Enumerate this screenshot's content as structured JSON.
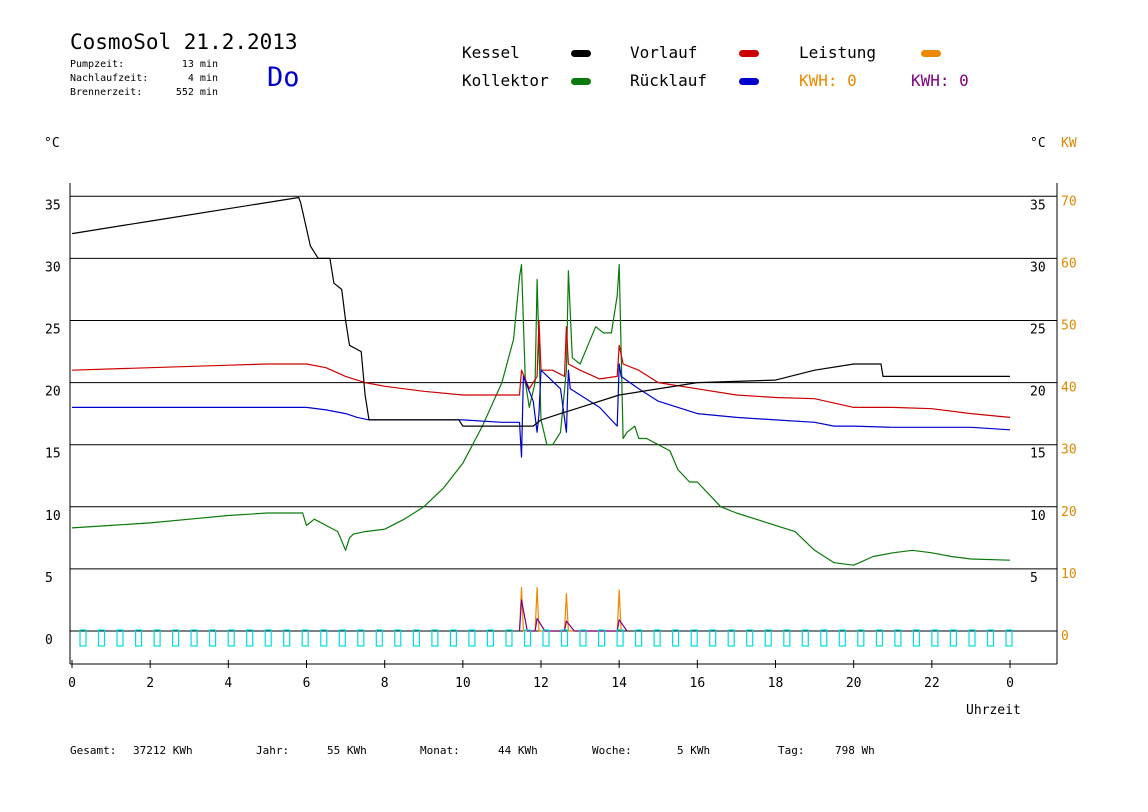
{
  "header": {
    "title": "CosmoSol 21.2.2013",
    "day": "Do",
    "stats": [
      {
        "label": "Pumpzeit:",
        "value": "13 min"
      },
      {
        "label": "Nachlaufzeit:",
        "value": "4 min"
      },
      {
        "label": "Brennerzeit:",
        "value": "552 min"
      }
    ]
  },
  "legend": {
    "kessel": "Kessel",
    "kollektor": "Kollektor",
    "vorlauf": "Vorlauf",
    "ruecklauf": "Rücklauf",
    "leistung": "Leistung",
    "kwh_orange": "KWH: 0",
    "kwh_purple": "KWH: 0"
  },
  "colors": {
    "kessel": "#000000",
    "kollektor": "#0a7a0a",
    "vorlauf": "#cc0000",
    "ruecklauf": "#0000cc",
    "leistung": "#ee8800",
    "kwh": "#800080",
    "pump": "#00dddd",
    "kw_axis": "#dd8800"
  },
  "footer": {
    "gesamt_label": "Gesamt:",
    "gesamt_value": "37212 KWh",
    "jahr_label": "Jahr:",
    "jahr_value": "55 KWh",
    "monat_label": "Monat:",
    "monat_value": "44 KWh",
    "woche_label": "Woche:",
    "woche_value": "5 KWh",
    "tag_label": "Tag:",
    "tag_value": "798 Wh"
  },
  "chart_data": {
    "type": "line",
    "xlabel": "Uhrzeit",
    "ylabel_left": "°C",
    "ylabel_right": "°C",
    "ylabel_right2": "KW",
    "xlim": [
      0,
      24
    ],
    "ylim": [
      -2.5,
      37
    ],
    "grid": true,
    "x_ticks": [
      "0",
      "2",
      "4",
      "6",
      "8",
      "10",
      "12",
      "14",
      "16",
      "18",
      "20",
      "22",
      "0"
    ],
    "y_ticks_left": [
      "0",
      "5",
      "10",
      "15",
      "20",
      "25",
      "30",
      "35"
    ],
    "y_ticks_right": [
      "",
      "5",
      "10",
      "15",
      "20",
      "25",
      "30",
      "35"
    ],
    "y_ticks_kw": [
      "0",
      "10",
      "20",
      "30",
      "40",
      "50",
      "60",
      "70"
    ],
    "series": [
      {
        "name": "Kessel",
        "x": [
          0,
          2,
          4,
          5.8,
          5.85,
          6.1,
          6.3,
          6.6,
          6.7,
          6.9,
          7.0,
          7.1,
          7.4,
          7.5,
          7.6,
          9.9,
          10.0,
          11.5,
          11.8,
          12.0,
          12.5,
          13.0,
          14.0,
          16.0,
          18.0,
          19.0,
          20.0,
          20.7,
          20.75,
          24.0
        ],
        "y": [
          32,
          33,
          34,
          34.9,
          34.5,
          31,
          30,
          30,
          28,
          27.5,
          25,
          23,
          22.5,
          19,
          17,
          17,
          16.5,
          16.5,
          16.5,
          17,
          17.5,
          18,
          19,
          20,
          20.2,
          21,
          21.5,
          21.5,
          20.5,
          20.5
        ]
      },
      {
        "name": "Kollektor",
        "x": [
          0,
          1,
          2,
          3,
          4,
          5,
          5.9,
          6.0,
          6.2,
          6.5,
          6.8,
          7.0,
          7.1,
          7.2,
          7.5,
          8.0,
          8.5,
          9.0,
          9.5,
          10.0,
          10.5,
          11.0,
          11.3,
          11.45,
          11.5,
          11.6,
          11.7,
          11.85,
          11.9,
          12.0,
          12.15,
          12.3,
          12.5,
          12.65,
          12.7,
          12.8,
          13.0,
          13.2,
          13.4,
          13.6,
          13.8,
          13.95,
          14.0,
          14.1,
          14.2,
          14.4,
          14.5,
          14.7,
          15.0,
          15.3,
          15.5,
          15.8,
          16.0,
          16.3,
          16.6,
          17.0,
          17.5,
          18.0,
          18.5,
          19.0,
          19.5,
          20.0,
          20.5,
          21.0,
          21.5,
          22.0,
          22.5,
          23.0,
          24.0
        ],
        "y": [
          8.3,
          8.5,
          8.7,
          9.0,
          9.3,
          9.5,
          9.5,
          8.5,
          9.0,
          8.5,
          8.0,
          6.5,
          7.5,
          7.8,
          8.0,
          8.2,
          9.0,
          10.0,
          11.5,
          13.5,
          16.5,
          20.0,
          23.5,
          28.5,
          29.5,
          20.0,
          18.0,
          20.0,
          28.3,
          17.0,
          15.0,
          15.0,
          16.0,
          21.0,
          29.0,
          22.0,
          21.5,
          23.0,
          24.5,
          24.0,
          24.0,
          27.0,
          29.5,
          15.5,
          16.0,
          16.5,
          15.5,
          15.5,
          15.0,
          14.5,
          13.0,
          12.0,
          12.0,
          11.0,
          10.0,
          9.5,
          9.0,
          8.5,
          8.0,
          6.5,
          5.5,
          5.3,
          6.0,
          6.3,
          6.5,
          6.3,
          6.0,
          5.8,
          5.7
        ]
      },
      {
        "name": "Vorlauf",
        "x": [
          0,
          2,
          4,
          5,
          6.0,
          6.5,
          7.0,
          7.5,
          8.0,
          9.0,
          10.0,
          11.0,
          11.45,
          11.5,
          11.7,
          11.9,
          11.95,
          12.0,
          12.3,
          12.6,
          12.65,
          12.7,
          13.0,
          13.5,
          13.95,
          14.0,
          14.1,
          14.5,
          15.0,
          16.0,
          17.0,
          18.0,
          19.0,
          20.0,
          21.0,
          22.0,
          23.0,
          24.0
        ],
        "y": [
          21.0,
          21.2,
          21.4,
          21.5,
          21.5,
          21.2,
          20.5,
          20.0,
          19.7,
          19.3,
          19.0,
          19.0,
          19.0,
          21.0,
          19.5,
          20.5,
          25.0,
          21.0,
          21.0,
          20.5,
          24.5,
          21.5,
          21.0,
          20.3,
          20.5,
          23.0,
          21.5,
          21.0,
          20.0,
          19.5,
          19.0,
          18.8,
          18.7,
          18.0,
          18.0,
          17.9,
          17.5,
          17.2
        ]
      },
      {
        "name": "Rücklauf",
        "x": [
          0,
          2,
          4,
          6.0,
          6.5,
          7.0,
          7.3,
          7.6,
          8.0,
          9.0,
          10.0,
          11.0,
          11.45,
          11.5,
          11.55,
          11.8,
          11.9,
          11.95,
          12.0,
          12.5,
          12.65,
          12.7,
          12.75,
          13.0,
          13.5,
          13.95,
          14.0,
          14.05,
          14.5,
          15.0,
          16.0,
          17.0,
          18.0,
          19.0,
          19.5,
          20.0,
          21.0,
          22.0,
          23.0,
          24.0
        ],
        "y": [
          18.0,
          18.0,
          18.0,
          18.0,
          17.8,
          17.5,
          17.2,
          17.0,
          17.0,
          17.0,
          17.0,
          16.8,
          16.8,
          14.0,
          20.5,
          18.5,
          16.0,
          17.5,
          21.0,
          19.5,
          16.0,
          21.0,
          19.5,
          19.0,
          18.0,
          16.5,
          21.5,
          20.5,
          19.5,
          18.5,
          17.5,
          17.2,
          17.0,
          16.8,
          16.5,
          16.5,
          16.4,
          16.4,
          16.4,
          16.2
        ]
      },
      {
        "name": "Leistung",
        "x": [
          11.45,
          11.5,
          11.55,
          11.85,
          11.9,
          11.95,
          12.6,
          12.65,
          12.7,
          13.95,
          14.0,
          14.05
        ],
        "y": [
          0,
          3.5,
          0,
          0,
          3.5,
          0,
          0,
          3,
          0,
          0,
          3.3,
          0
        ]
      },
      {
        "name": "KWH",
        "x": [
          11.45,
          11.5,
          11.65,
          11.85,
          11.9,
          12.1,
          12.6,
          12.65,
          12.85,
          13.95,
          14.0,
          14.2
        ],
        "y": [
          0,
          2.5,
          0,
          0,
          1.0,
          0,
          0,
          0.8,
          0,
          0,
          0.9,
          0
        ]
      }
    ],
    "pump_marks_count": 51
  }
}
